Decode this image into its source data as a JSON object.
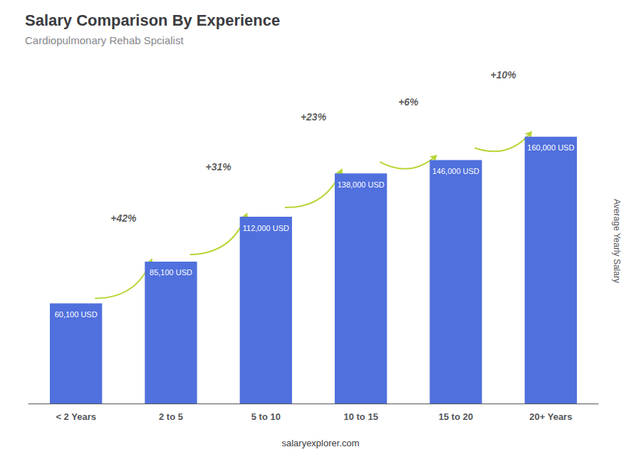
{
  "chart_data": {
    "type": "bar",
    "title": "Salary Comparison By Experience",
    "subtitle": "Cardiopulmonary Rehab Spcialist",
    "categories": [
      "< 2 Years",
      "2 to 5",
      "5 to 10",
      "10 to 15",
      "15 to 20",
      "20+ Years"
    ],
    "values": [
      60100,
      85100,
      112000,
      138000,
      146000,
      160000
    ],
    "value_labels": [
      "60,100 USD",
      "85,100 USD",
      "112,000 USD",
      "138,000 USD",
      "146,000 USD",
      "160,000 USD"
    ],
    "data_labels": true,
    "annotations": [
      "+42%",
      "+31%",
      "+23%",
      "+6%",
      "+10%"
    ],
    "ylabel": "Average Yearly Salary",
    "footer": "salaryexplorer.com",
    "ylim": [
      0,
      195000
    ],
    "tick_labels": "x",
    "grid": false
  }
}
